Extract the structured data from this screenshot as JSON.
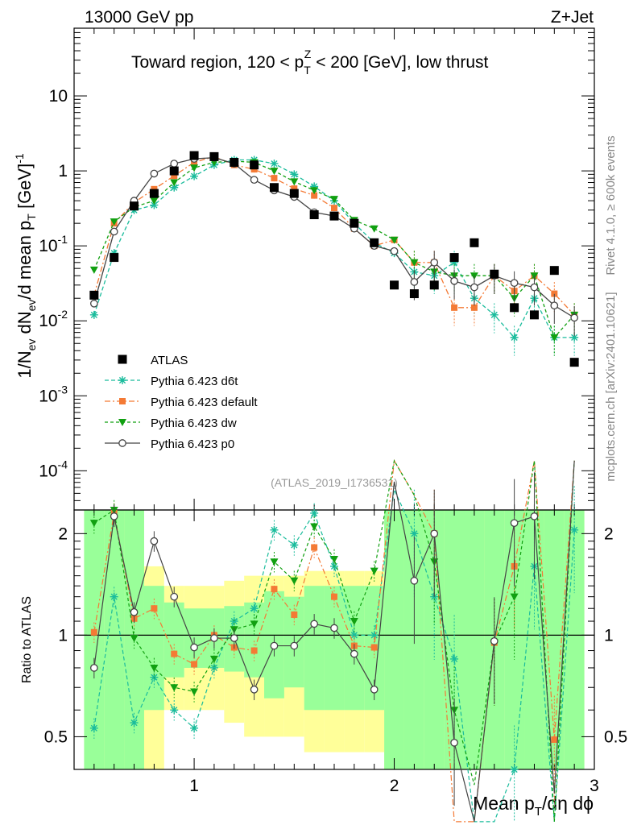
{
  "header": {
    "left": "13000 GeV pp",
    "right": "Z+Jet"
  },
  "side_labels": {
    "rivet": "Rivet 4.1.0, ≥ 600k events",
    "mcplots": "mcplots.cern.ch [arXiv:2401.10621]"
  },
  "chart_data": {
    "type": "scatter",
    "title_parts": {
      "pre": "Toward region, 120 < p",
      "sub": "T",
      "sup": "Z",
      "post": " < 200 [GeV], low thrust"
    },
    "analysis_id": "(ATLAS_2019_I1736531)",
    "xlabel_parts": {
      "pre": "Mean p",
      "sub": "T",
      "post": "/dη dϕ"
    },
    "ylabel_parts": {
      "a": "1/N",
      "a_sub": "ev",
      "b": " dN",
      "b_sub": "ev",
      "c": "/d mean p",
      "c_sub": "T",
      "d": " [GeV]",
      "d_sup": "-1"
    },
    "ratio_ylabel": "Ratio to ATLAS",
    "xlim": [
      0.4,
      3.0
    ],
    "ylim_log": [
      3e-05,
      80
    ],
    "ratio_ylim": [
      0.4,
      2.35
    ],
    "x_major_ticks": [
      1,
      2,
      3
    ],
    "x_tick_labels": [
      "1",
      "2",
      "3"
    ],
    "y_tick_labels": [
      {
        "v": 10,
        "base": "10",
        "exp": ""
      },
      {
        "v": 1,
        "base": "1",
        "exp": ""
      },
      {
        "v": 0.1,
        "base": "10",
        "exp": "-1"
      },
      {
        "v": 0.01,
        "base": "10",
        "exp": "-2"
      },
      {
        "v": 0.001,
        "base": "10",
        "exp": "-3"
      },
      {
        "v": 0.0001,
        "base": "10",
        "exp": "-4"
      }
    ],
    "ratio_tick_labels": [
      {
        "v": 2,
        "label": "2"
      },
      {
        "v": 1,
        "label": "1"
      },
      {
        "v": 0.5,
        "label": "0.5"
      }
    ],
    "x": [
      0.5,
      0.6,
      0.7,
      0.8,
      0.9,
      1.0,
      1.1,
      1.2,
      1.3,
      1.4,
      1.5,
      1.6,
      1.7,
      1.8,
      1.9,
      2.0,
      2.1,
      2.2,
      2.3,
      2.4,
      2.5,
      2.6,
      2.7,
      2.8,
      2.9
    ],
    "data": {
      "name": "ATLAS",
      "values": [
        0.022,
        0.07,
        0.34,
        0.5,
        1.0,
        1.6,
        1.55,
        1.3,
        1.2,
        0.6,
        0.5,
        0.26,
        0.25,
        0.2,
        0.11,
        0.03,
        0.023,
        0.03,
        0.07,
        0.11,
        0.042,
        0.015,
        0.012,
        0.047,
        0.0028
      ]
    },
    "series": [
      {
        "name": "Pythia 6.423 d6t",
        "color": "#1abc9c",
        "marker": "star",
        "dash": "5,3",
        "values": [
          0.012,
          0.08,
          0.3,
          0.35,
          0.6,
          0.85,
          1.2,
          1.4,
          1.4,
          1.25,
          0.9,
          0.62,
          0.4,
          0.2,
          0.11,
          0.08,
          0.045,
          0.04,
          0.06,
          0.02,
          0.012,
          0.006,
          0.02,
          0.006,
          0.006
        ]
      },
      {
        "name": "Pythia 6.423 default",
        "color": "#f47a35",
        "marker": "square",
        "dash": "7,3,2,3",
        "values": [
          0.022,
          0.2,
          0.38,
          0.57,
          0.86,
          1.3,
          1.55,
          1.2,
          1.05,
          0.8,
          0.58,
          0.47,
          0.32,
          0.17,
          0.1,
          0.12,
          0.06,
          0.06,
          0.015,
          0.015,
          0.04,
          0.025,
          0.04,
          0.023,
          0.012
        ]
      },
      {
        "name": "Pythia 6.423 dw",
        "color": "#11a011",
        "marker": "triangle",
        "dash": "4,3",
        "values": [
          0.048,
          0.21,
          0.33,
          0.4,
          0.7,
          1.1,
          1.3,
          1.35,
          1.3,
          1.0,
          0.72,
          0.55,
          0.42,
          0.22,
          0.17,
          0.12,
          0.06,
          0.045,
          0.04,
          0.04,
          0.04,
          0.02,
          0.04,
          0.006,
          0.012
        ]
      },
      {
        "name": "Pythia 6.423 p0",
        "color": "#444444",
        "marker": "circle",
        "dash": "",
        "values": [
          0.017,
          0.155,
          0.4,
          0.92,
          1.25,
          1.45,
          1.5,
          1.25,
          0.76,
          0.55,
          0.45,
          0.28,
          0.25,
          0.17,
          0.1,
          0.085,
          0.033,
          0.06,
          0.034,
          0.028,
          0.04,
          0.032,
          0.028,
          0.016,
          0.011
        ]
      }
    ],
    "ratio": [
      {
        "name": "Pythia 6.423 d6t",
        "values": [
          0.53,
          1.3,
          0.55,
          0.75,
          0.6,
          0.53,
          0.8,
          1.1,
          1.2,
          2.05,
          1.85,
          2.3,
          1.6,
          1.0,
          1.0,
          2.7,
          2.0,
          1.3,
          0.85,
          0.18,
          0.28,
          0.4,
          1.6,
          0.13,
          2.05
        ]
      },
      {
        "name": "Pythia 6.423 default",
        "values": [
          1.02,
          2.3,
          1.12,
          1.2,
          0.88,
          0.82,
          1.0,
          0.92,
          0.9,
          1.37,
          1.15,
          1.82,
          1.3,
          0.93,
          0.92,
          4.0,
          2.6,
          2.0,
          0.22,
          0.14,
          0.95,
          1.6,
          3.3,
          0.49,
          4.3
        ]
      },
      {
        "name": "Pythia 6.423 dw",
        "values": [
          2.15,
          2.35,
          0.98,
          0.8,
          0.7,
          0.68,
          0.85,
          1.04,
          1.08,
          1.65,
          1.45,
          2.1,
          1.68,
          1.1,
          1.55,
          4.0,
          2.6,
          1.65,
          0.6,
          0.36,
          0.95,
          1.3,
          3.3,
          0.13,
          4.3
        ]
      },
      {
        "name": "Pythia 6.423 p0",
        "values": [
          0.8,
          2.25,
          1.17,
          1.9,
          1.3,
          0.92,
          0.98,
          0.98,
          0.69,
          0.93,
          0.93,
          1.08,
          1.05,
          0.88,
          0.69,
          2.85,
          1.45,
          2.0,
          0.48,
          0.25,
          0.96,
          2.15,
          2.25,
          0.34,
          3.9
        ]
      }
    ],
    "ratio_band_x_edges": [
      0.45,
      0.55,
      0.65,
      0.75,
      0.85,
      0.95,
      1.05,
      1.15,
      1.25,
      1.35,
      1.45,
      1.55,
      1.65,
      1.75,
      1.85,
      1.95,
      2.05,
      2.15,
      2.25,
      2.35,
      2.45,
      2.55,
      2.65,
      2.75,
      2.85,
      2.95
    ],
    "ratio_band_inner": [
      [
        0.0,
        3.0
      ],
      [
        0.0,
        3.0
      ],
      [
        0.0,
        3.0
      ],
      [
        0.6,
        1.4
      ],
      [
        0.75,
        1.25
      ],
      [
        0.8,
        1.2
      ],
      [
        0.8,
        1.2
      ],
      [
        0.78,
        1.22
      ],
      [
        0.75,
        1.25
      ],
      [
        0.65,
        1.35
      ],
      [
        0.7,
        1.3
      ],
      [
        0.6,
        1.4
      ],
      [
        0.6,
        1.4
      ],
      [
        0.6,
        1.4
      ],
      [
        0.6,
        1.4
      ],
      [
        0.0,
        3.0
      ],
      [
        0.0,
        3.0
      ],
      [
        0.0,
        3.0
      ],
      [
        0.0,
        3.0
      ],
      [
        0.0,
        3.0
      ],
      [
        0.0,
        3.0
      ],
      [
        0.0,
        3.0
      ],
      [
        0.0,
        3.0
      ],
      [
        0.0,
        3.0
      ],
      [
        0.0,
        3.0
      ]
    ],
    "ratio_band_outer": [
      [
        0.0,
        3.0
      ],
      [
        0.0,
        3.0
      ],
      [
        0.0,
        3.0
      ],
      [
        0.4,
        1.6
      ],
      [
        0.6,
        1.4
      ],
      [
        0.6,
        1.4
      ],
      [
        0.6,
        1.4
      ],
      [
        0.55,
        1.45
      ],
      [
        0.5,
        1.5
      ],
      [
        0.5,
        1.5
      ],
      [
        0.5,
        1.5
      ],
      [
        0.45,
        1.55
      ],
      [
        0.45,
        1.55
      ],
      [
        0.45,
        1.55
      ],
      [
        0.45,
        1.55
      ],
      [
        0.0,
        3.0
      ],
      [
        0.0,
        3.0
      ],
      [
        0.0,
        3.0
      ],
      [
        0.0,
        3.0
      ],
      [
        0.0,
        3.0
      ],
      [
        0.0,
        3.0
      ],
      [
        0.0,
        3.0
      ],
      [
        0.0,
        3.0
      ],
      [
        0.0,
        3.0
      ],
      [
        0.0,
        3.0
      ]
    ]
  }
}
